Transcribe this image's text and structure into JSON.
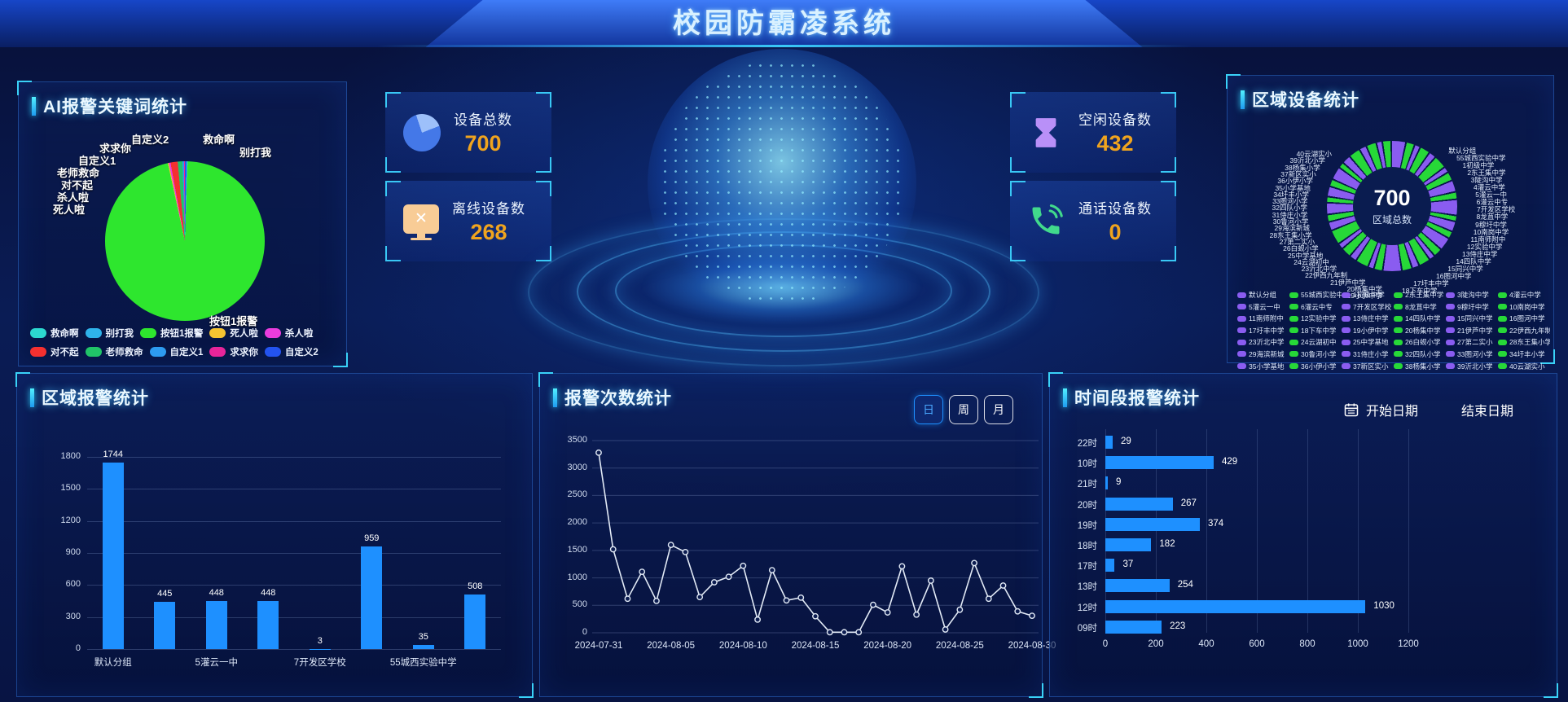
{
  "header": {
    "title": "校园防霸凌系统"
  },
  "stat_cards": [
    {
      "label": "设备总数",
      "value": "700",
      "icon": "pie-chart-icon"
    },
    {
      "label": "离线设备数",
      "value": "268",
      "icon": "offline-monitor-icon"
    },
    {
      "label": "空闲设备数",
      "value": "432",
      "icon": "hourglass-icon"
    },
    {
      "label": "通话设备数",
      "value": "0",
      "icon": "phone-icon"
    }
  ],
  "keyword_panel": {
    "title": "AI报警关键词统计"
  },
  "region_device_panel": {
    "title": "区域设备统计",
    "center_value": "700",
    "center_label": "区域总数"
  },
  "region_alarm_panel": {
    "title": "区域报警统计"
  },
  "alarm_count_panel": {
    "title": "报警次数统计",
    "range_buttons": [
      "日",
      "周",
      "月"
    ],
    "active_range": "日"
  },
  "time_alarm_panel": {
    "title": "时间段报警统计",
    "start_date_label": "开始日期",
    "end_date_label": "结束日期"
  },
  "icon_glyphs": {
    "offline_x": "✕"
  },
  "chart_data": [
    {
      "id": "keyword_pie",
      "type": "pie",
      "title": "AI报警关键词统计",
      "note": "slice percentages estimated from pixels; no numeric labels shown",
      "series": [
        {
          "name": "按钮1报警",
          "color": "#2ee62e",
          "pct": 96.0
        },
        {
          "name": "死人啦",
          "color": "#f5c431",
          "pct": 0.2
        },
        {
          "name": "杀人啦",
          "color": "#ea3cdd",
          "pct": 0.35
        },
        {
          "name": "对不起",
          "color": "#f53030",
          "pct": 1.45
        },
        {
          "name": "老师救命",
          "color": "#21c468",
          "pct": 0.95
        },
        {
          "name": "自定义1",
          "color": "#2d9bf0",
          "pct": 0.3
        },
        {
          "name": "求求你",
          "color": "#e8259a",
          "pct": 0.2
        },
        {
          "name": "自定义2",
          "color": "#2353ef",
          "pct": 0.35
        },
        {
          "name": "救命啊",
          "color": "#2cd8cf",
          "pct": 0.15
        },
        {
          "name": "别打我",
          "color": "#2fb3ea",
          "pct": 0.05
        }
      ],
      "callouts": [
        "自定义2",
        "救命啊",
        "别打我",
        "求求你",
        "自定义1",
        "老师救命",
        "对不起",
        "杀人啦",
        "死人啦",
        "按钮1报警"
      ],
      "legend": [
        "救命啊",
        "别打我",
        "按钮1报警",
        "死人啦",
        "杀人啦",
        "对不起",
        "老师救命",
        "自定义1",
        "求求你",
        "自定义2"
      ]
    },
    {
      "id": "region_donut",
      "type": "pie",
      "title": "区域设备统计",
      "total": 700,
      "center_label": "区域总数",
      "slice_colors": [
        "#8a5cf0",
        "#27d838"
      ],
      "categories": [
        "默认分组",
        "55城西实验中学",
        "1初级中学",
        "2东王集中学",
        "3陡沟中学",
        "4灌云中学",
        "5灌云一中",
        "6灌云中专",
        "7开发区学校",
        "8龙苴中学",
        "9穆圩中学",
        "10南岗中学",
        "11南师附中",
        "12实验中学",
        "13侍庄中学",
        "14四队中学",
        "15同兴中学",
        "16图河中学",
        "17圩丰中学",
        "18下车中学",
        "19小伊中学",
        "20杨集中学",
        "21伊芦中学",
        "22伊西九年制",
        "23沂北中学",
        "24云湖初中",
        "25中学基地",
        "26白蚬小学",
        "27第二实小",
        "28东王集小学",
        "29海滨新城",
        "30鲁河小学",
        "31侍庄小学",
        "32四队小学",
        "33图河小学",
        "34圩丰小学",
        "35小学基地",
        "36小伊小学",
        "37新区实小",
        "38杨集小学",
        "39沂北小学",
        "40云湖实小"
      ],
      "left_labels": [
        "40云湖实小",
        "39沂北小学",
        "38杨集小学",
        "37新区实小",
        "36小伊小学",
        "35小学基地",
        "34圩丰小学",
        "33图河小学",
        "32四队小学",
        "31侍庄小学",
        "30鲁河小学",
        "29海滨新城",
        "28东王集小学",
        "27第二实小",
        "26白蚬小学",
        "25中学基地",
        "24云湖初中",
        "23沂北中学",
        "22伊西九年制",
        "21伊芦中学",
        "20杨集中学",
        "19小伊中学"
      ],
      "right_labels": [
        "默认分组",
        "55城西实验中学",
        "1初级中学",
        "2东王集中学",
        "3陡沟中学",
        "4灌云中学",
        "5灌云一中",
        "6灌云中专",
        "7开发区学校",
        "8龙苴中学",
        "9穆圩中学",
        "10南岗中学",
        "11南师附中",
        "12实验中学",
        "13侍庄中学",
        "14四队中学",
        "15同兴中学",
        "16图河中学",
        "17圩丰中学",
        "18下车中学"
      ]
    },
    {
      "id": "region_bar",
      "type": "bar",
      "title": "区域报警统计",
      "categories": [
        "默认分组",
        "",
        "5灌云一中",
        "",
        "7开发区学校",
        "",
        "55城西实验中学",
        ""
      ],
      "values": [
        1744,
        445,
        448,
        448,
        3,
        959,
        35,
        508
      ],
      "yticks": [
        0,
        300,
        600,
        900,
        1200,
        1500,
        1800
      ],
      "ylim": [
        0,
        1800
      ],
      "bar_color": "#1e90ff"
    },
    {
      "id": "alarm_line",
      "type": "line",
      "title": "报警次数统计",
      "x": [
        "2024-07-31",
        "2024-08-01",
        "2024-08-02",
        "2024-08-03",
        "2024-08-04",
        "2024-08-05",
        "2024-08-06",
        "2024-08-07",
        "2024-08-08",
        "2024-08-09",
        "2024-08-10",
        "2024-08-11",
        "2024-08-12",
        "2024-08-13",
        "2024-08-14",
        "2024-08-15",
        "2024-08-16",
        "2024-08-17",
        "2024-08-18",
        "2024-08-19",
        "2024-08-20",
        "2024-08-21",
        "2024-08-22",
        "2024-08-23",
        "2024-08-24",
        "2024-08-25",
        "2024-08-26",
        "2024-08-27",
        "2024-08-28",
        "2024-08-29",
        "2024-08-30"
      ],
      "values": [
        3280,
        1520,
        620,
        1110,
        580,
        1600,
        1470,
        650,
        920,
        1020,
        1220,
        240,
        1140,
        590,
        640,
        300,
        10,
        10,
        10,
        510,
        370,
        1210,
        330,
        950,
        60,
        420,
        1270,
        620,
        860,
        390,
        310
      ],
      "shown_x_indices": [
        0,
        5,
        10,
        15,
        20,
        25,
        30
      ],
      "yticks": [
        0,
        500,
        1000,
        1500,
        2000,
        2500,
        3000,
        3500
      ],
      "ylim": [
        0,
        3500
      ],
      "line_color": "#e2eaf6",
      "note": "y values estimated from gridlines; no numeric labels shown"
    },
    {
      "id": "time_hbar",
      "type": "bar",
      "orientation": "horizontal",
      "title": "时间段报警统计",
      "categories": [
        "22时",
        "10时",
        "21时",
        "20时",
        "19时",
        "18时",
        "17时",
        "13时",
        "12时",
        "09时"
      ],
      "values": [
        29,
        429,
        9,
        267,
        374,
        182,
        37,
        254,
        1030,
        223
      ],
      "xticks": [
        0,
        200,
        400,
        600,
        800,
        1000,
        1200
      ],
      "xlim": [
        0,
        1200
      ],
      "bar_color": "#1e90ff"
    }
  ]
}
